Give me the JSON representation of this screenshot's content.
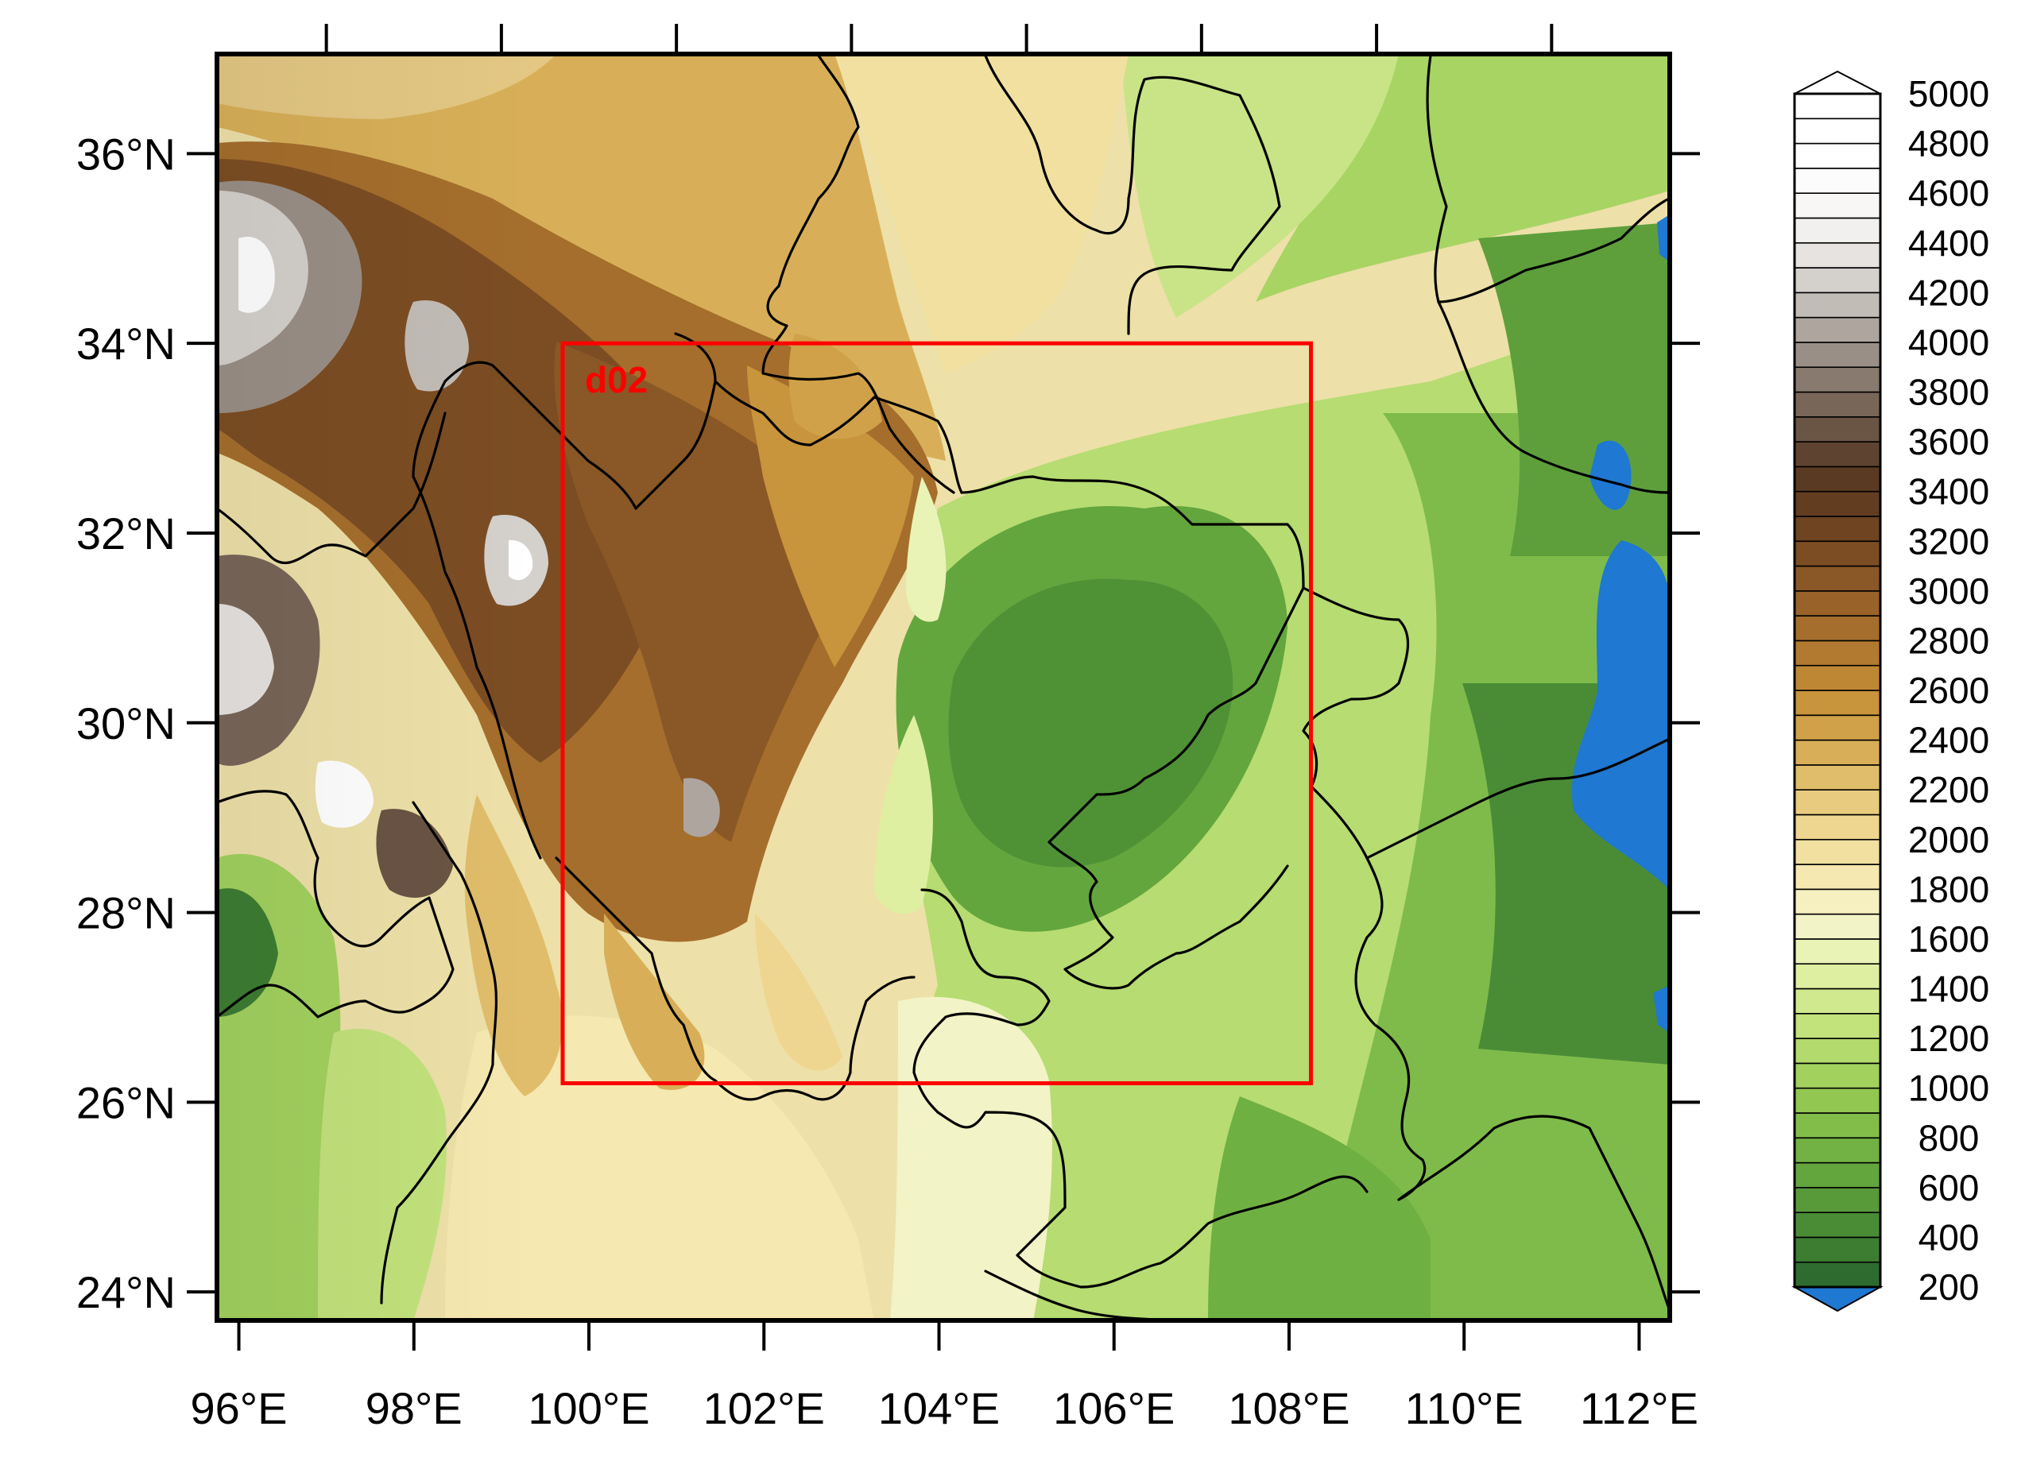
{
  "map": {
    "projection": "lat-lon",
    "lon_range": [
      95.75,
      112.35
    ],
    "lat_range": [
      23.7,
      37.05
    ],
    "lon_ticks": [
      96,
      98,
      100,
      102,
      104,
      106,
      108,
      110,
      112
    ],
    "lat_ticks": [
      24,
      26,
      28,
      30,
      32,
      34,
      36
    ],
    "lon_tick_labels": [
      "96°E",
      "98°E",
      "100°E",
      "102°E",
      "104°E",
      "106°E",
      "108°E",
      "110°E",
      "112°E"
    ],
    "lat_tick_labels": [
      "24°N",
      "26°N",
      "28°N",
      "30°N",
      "32°N",
      "34°N",
      "36°N"
    ],
    "inner_domain": {
      "label": "d02",
      "lon_min": 99.7,
      "lon_max": 108.25,
      "lat_min": 26.2,
      "lat_max": 34.0,
      "color": "#ff0000"
    }
  },
  "colorbar": {
    "levels": [
      200,
      300,
      400,
      500,
      600,
      700,
      800,
      900,
      1000,
      1100,
      1200,
      1300,
      1400,
      1500,
      1600,
      1700,
      1800,
      1900,
      2000,
      2100,
      2200,
      2300,
      2400,
      2500,
      2600,
      2700,
      2800,
      2900,
      3000,
      3100,
      3200,
      3300,
      3400,
      3500,
      3600,
      3700,
      3800,
      3900,
      4000,
      4100,
      4200,
      4300,
      4400,
      4500,
      4600,
      4700,
      4800,
      4900,
      5000
    ],
    "labels": [
      "200",
      "400",
      "600",
      "800",
      "1000",
      "1200",
      "1400",
      "1600",
      "1800",
      "2000",
      "2200",
      "2400",
      "2600",
      "2800",
      "3000",
      "3200",
      "3400",
      "3600",
      "3800",
      "4000",
      "4200",
      "4400",
      "4600",
      "4800",
      "5000"
    ],
    "below_color": "#1f78d1",
    "above_color": "#ffffff",
    "colors": [
      "#2e6b2e",
      "#3d7d32",
      "#4a8c36",
      "#589a3a",
      "#64a63e",
      "#72b244",
      "#82bd4a",
      "#92c752",
      "#a2d15e",
      "#b2da6c",
      "#c2e27c",
      "#d0e98e",
      "#deefa2",
      "#e9f3b6",
      "#f2f3c6",
      "#f6efc0",
      "#f5e8b0",
      "#f2e0a0",
      "#eed690",
      "#e8cb7e",
      "#e0bd6a",
      "#d8af58",
      "#d0a148",
      "#c8943c",
      "#be8734",
      "#b27a30",
      "#a56e2c",
      "#986229",
      "#8a5726",
      "#7c4d23",
      "#6e4421",
      "#633d20",
      "#5a3a22",
      "#5e4430",
      "#6a5444",
      "#786658",
      "#887a6e",
      "#9a8f86",
      "#aea59e",
      "#c2bcb6",
      "#d4d0cc",
      "#e6e3e0",
      "#f2f0ee",
      "#f8f7f6",
      "#fcfcfc",
      "#ffffff",
      "#ffffff",
      "#ffffff"
    ]
  }
}
